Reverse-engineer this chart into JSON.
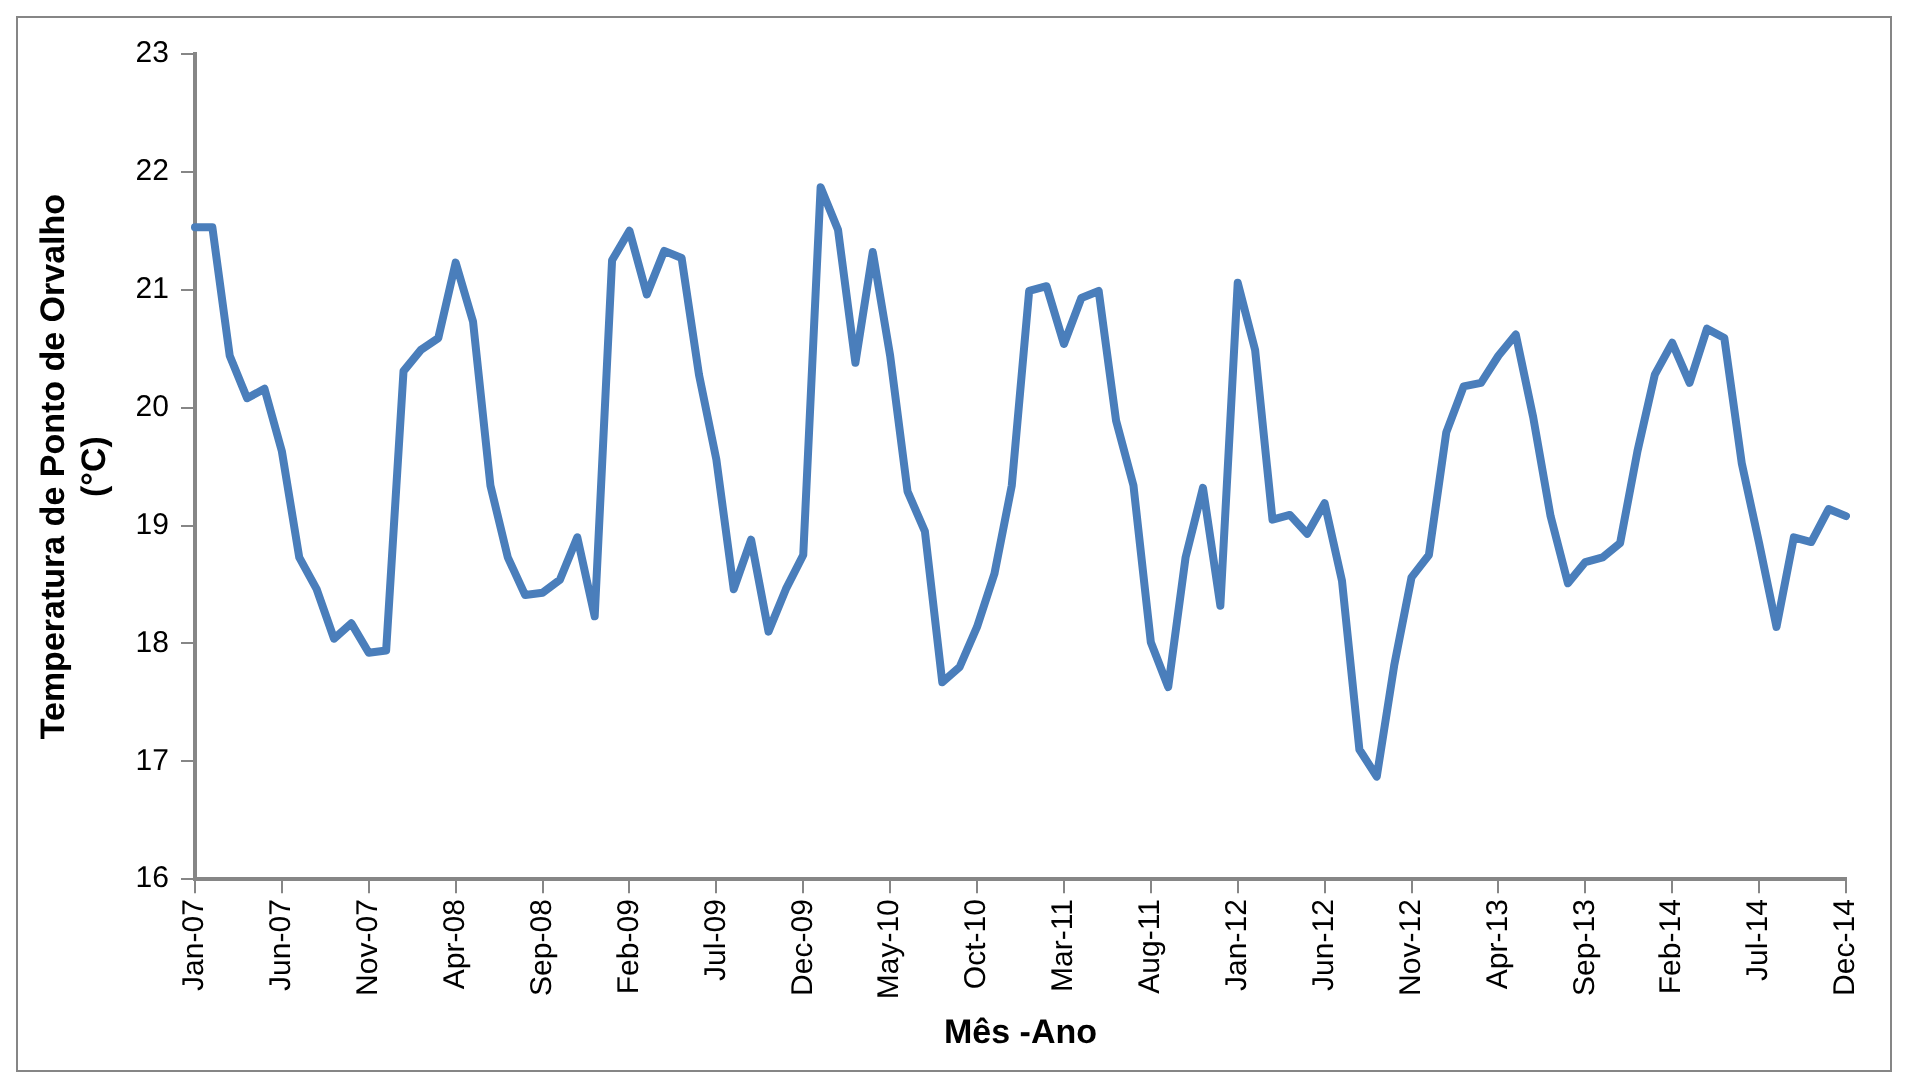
{
  "chart_data": {
    "type": "line",
    "xlabel": "Mês -Ano",
    "ylabel": "Temperatura de Ponto de Orvalho (°C)",
    "categories": [
      "Jan-07",
      null,
      null,
      null,
      null,
      "Jun-07",
      null,
      null,
      null,
      null,
      "Nov-07",
      null,
      null,
      null,
      null,
      "Apr-08",
      null,
      null,
      null,
      null,
      "Sep-08",
      null,
      null,
      null,
      null,
      "Feb-09",
      null,
      null,
      null,
      null,
      "Jul-09",
      null,
      null,
      null,
      null,
      "Dec-09",
      null,
      null,
      null,
      null,
      "May-10",
      null,
      null,
      null,
      null,
      "Oct-10",
      null,
      null,
      null,
      null,
      "Mar-11",
      null,
      null,
      null,
      null,
      "Aug-11",
      null,
      null,
      null,
      null,
      "Jan-12",
      null,
      null,
      null,
      null,
      "Jun-12",
      null,
      null,
      null,
      null,
      "Nov-12",
      null,
      null,
      null,
      null,
      "Apr-13",
      null,
      null,
      null,
      null,
      "Sep-13",
      null,
      null,
      null,
      null,
      "Feb-14",
      null,
      null,
      null,
      null,
      "Jul-14",
      null,
      null,
      null,
      null,
      "Dec-14"
    ],
    "series": [
      {
        "color": "#4a7ebb",
        "values": [
          21.53,
          21.53,
          20.44,
          20.08,
          20.16,
          19.63,
          18.73,
          18.46,
          18.04,
          18.17,
          17.92,
          17.94,
          20.31,
          20.49,
          20.59,
          21.23,
          20.73,
          19.34,
          18.73,
          18.41,
          18.43,
          18.54,
          18.9,
          18.23,
          21.25,
          21.5,
          20.96,
          21.33,
          21.27,
          20.28,
          19.56,
          18.46,
          18.88,
          18.1,
          18.46,
          18.75,
          21.87,
          21.51,
          20.38,
          21.32,
          20.44,
          19.29,
          18.95,
          17.67,
          17.8,
          18.14,
          18.59,
          19.34,
          20.99,
          21.03,
          20.54,
          20.93,
          20.99,
          19.89,
          19.34,
          18.01,
          17.63,
          18.73,
          19.32,
          18.32,
          21.06,
          20.49,
          19.05,
          19.09,
          18.93,
          19.19,
          18.53,
          17.1,
          16.87,
          17.81,
          18.56,
          18.75,
          19.79,
          20.18,
          20.21,
          20.44,
          20.62,
          19.92,
          19.08,
          18.51,
          18.69,
          18.73,
          18.85,
          19.63,
          20.28,
          20.55,
          20.21,
          20.67,
          20.59,
          19.53,
          18.85,
          18.14,
          18.9,
          18.86,
          19.14,
          19.08
        ]
      }
    ],
    "ylim": [
      16,
      23
    ],
    "yticks": [
      16,
      17,
      18,
      19,
      20,
      21,
      22,
      23
    ],
    "grid": false,
    "legend": false,
    "marker": "none",
    "line_style": "solid"
  }
}
